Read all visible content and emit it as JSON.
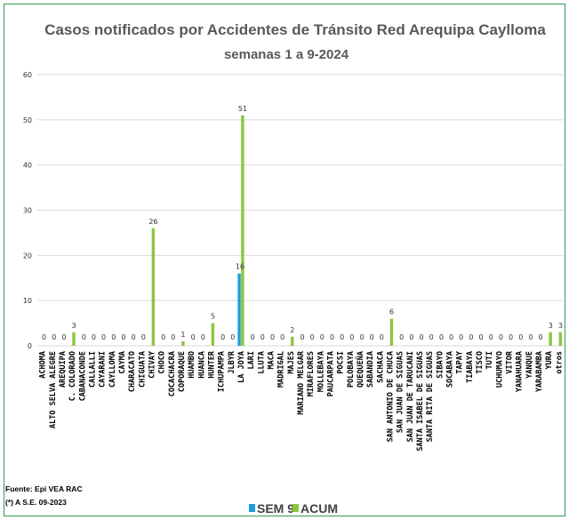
{
  "chart_data": {
    "type": "bar",
    "title_line1": "Casos notificados  por Accidentes de Tránsito Red Arequipa Caylloma",
    "title_line2": "semanas 1 a 9-2024",
    "ylim": [
      0,
      60
    ],
    "yticks": [
      0,
      10,
      20,
      30,
      40,
      50,
      60
    ],
    "grid": true,
    "legend_position": "bottom",
    "categories": [
      "ACHOMA",
      "ALTO SELVA ALEGRE",
      "AREQUIPA",
      "C. COLORADO",
      "CABANACONDE",
      "CALLALLI",
      "CAYARANI",
      "CAYLLOMA",
      "CAYMA",
      "CHARACATO",
      "CHIGUATA",
      "CHIVAY",
      "CHOCO",
      "COCACHACRA",
      "COPORAQUE",
      "HUAMBO",
      "HUANCA",
      "HUNTER",
      "ICHUPAMPA",
      "JLBYR",
      "LA JOYA",
      "LARI",
      "LLUTA",
      "MACA",
      "MADRIGAL",
      "MAJES",
      "MARIANO MELGAR",
      "MIRAFLORES",
      "MOLLEBAYA",
      "PAUCARPATA",
      "POCSI",
      "POLOBAYA",
      "QUEQUEÑA",
      "SABANDIA",
      "SACHACA",
      "SAN ANTONIO DE CHUCA",
      "SAN JUAN DE SIGUAS",
      "SAN JUAN DE TARUCANI",
      "SANTA ISABEL DE SIGUAS",
      "SANTA RITA DE SIGUAS",
      "SIBAYO",
      "SOCABAYA",
      "TAPAY",
      "TIABAYA",
      "TISCO",
      "TUTI",
      "UCHUMAYO",
      "VITOR",
      "YANAHUARA",
      "YANQUE",
      "YARABAMBA",
      "YURA",
      "otros"
    ],
    "series": [
      {
        "name": "SEM 9",
        "color": "#1f9ad6",
        "values": [
          0,
          0,
          0,
          0,
          0,
          0,
          0,
          0,
          0,
          0,
          0,
          0,
          0,
          0,
          0,
          0,
          0,
          0,
          0,
          0,
          16,
          0,
          0,
          0,
          0,
          0,
          0,
          0,
          0,
          0,
          0,
          0,
          0,
          0,
          0,
          0,
          0,
          0,
          0,
          0,
          0,
          0,
          0,
          0,
          0,
          0,
          0,
          0,
          0,
          0,
          0,
          0,
          0
        ]
      },
      {
        "name": "ACUM",
        "color": "#8cc63f",
        "values": [
          0,
          0,
          0,
          3,
          0,
          0,
          0,
          0,
          0,
          0,
          0,
          26,
          0,
          0,
          1,
          0,
          0,
          5,
          0,
          0,
          51,
          0,
          0,
          0,
          0,
          2,
          0,
          0,
          0,
          0,
          0,
          0,
          0,
          0,
          0,
          6,
          0,
          0,
          0,
          0,
          0,
          0,
          0,
          0,
          0,
          0,
          0,
          0,
          0,
          0,
          0,
          3,
          3
        ]
      }
    ],
    "data_labels": [
      {
        "category": 0,
        "label": "0"
      },
      {
        "category": 1,
        "label": "0"
      },
      {
        "category": 2,
        "label": "0"
      },
      {
        "category": 3,
        "label": "3"
      },
      {
        "category": 4,
        "label": "0"
      },
      {
        "category": 5,
        "label": "0"
      },
      {
        "category": 6,
        "label": "0"
      },
      {
        "category": 7,
        "label": "0"
      },
      {
        "category": 8,
        "label": "0"
      },
      {
        "category": 9,
        "label": "0"
      },
      {
        "category": 10,
        "label": "0"
      },
      {
        "category": 11,
        "label": "26"
      },
      {
        "category": 12,
        "label": "0"
      },
      {
        "category": 13,
        "label": "0"
      },
      {
        "category": 14,
        "label": "1"
      },
      {
        "category": 15,
        "label": "0"
      },
      {
        "category": 16,
        "label": "0"
      },
      {
        "category": 17,
        "label": "5"
      },
      {
        "category": 18,
        "label": "0"
      },
      {
        "category": 19,
        "label": "0"
      },
      {
        "category": 20,
        "label": "16",
        "series": "SEM 9"
      },
      {
        "category": 20,
        "label": "51",
        "series": "ACUM"
      },
      {
        "category": 21,
        "label": "0"
      },
      {
        "category": 22,
        "label": "0"
      },
      {
        "category": 23,
        "label": "0"
      },
      {
        "category": 24,
        "label": "0"
      },
      {
        "category": 25,
        "label": "2"
      },
      {
        "category": 26,
        "label": "0"
      },
      {
        "category": 27,
        "label": "0"
      },
      {
        "category": 28,
        "label": "0"
      },
      {
        "category": 29,
        "label": "0"
      },
      {
        "category": 30,
        "label": "0"
      },
      {
        "category": 31,
        "label": "0"
      },
      {
        "category": 32,
        "label": "0"
      },
      {
        "category": 33,
        "label": "0"
      },
      {
        "category": 34,
        "label": "0"
      },
      {
        "category": 35,
        "label": "6"
      },
      {
        "category": 36,
        "label": "0"
      },
      {
        "category": 37,
        "label": "0"
      },
      {
        "category": 38,
        "label": "0"
      },
      {
        "category": 39,
        "label": "0"
      },
      {
        "category": 40,
        "label": "0"
      },
      {
        "category": 41,
        "label": "0"
      },
      {
        "category": 42,
        "label": "0"
      },
      {
        "category": 43,
        "label": "0"
      },
      {
        "category": 44,
        "label": "0"
      },
      {
        "category": 45,
        "label": "0"
      },
      {
        "category": 46,
        "label": "0"
      },
      {
        "category": 47,
        "label": "0"
      },
      {
        "category": 48,
        "label": "0"
      },
      {
        "category": 49,
        "label": "0"
      },
      {
        "category": 50,
        "label": "0"
      },
      {
        "category": 51,
        "label": "3"
      },
      {
        "category": 52,
        "label": "3"
      }
    ]
  },
  "source": {
    "line1": "Fuente: Epi VEA RAC",
    "line2": "(*) A S.E. 09-2023"
  },
  "colors": {
    "frame": "#2e9e57",
    "grid": "#d9d9d9",
    "title": "#595959"
  }
}
